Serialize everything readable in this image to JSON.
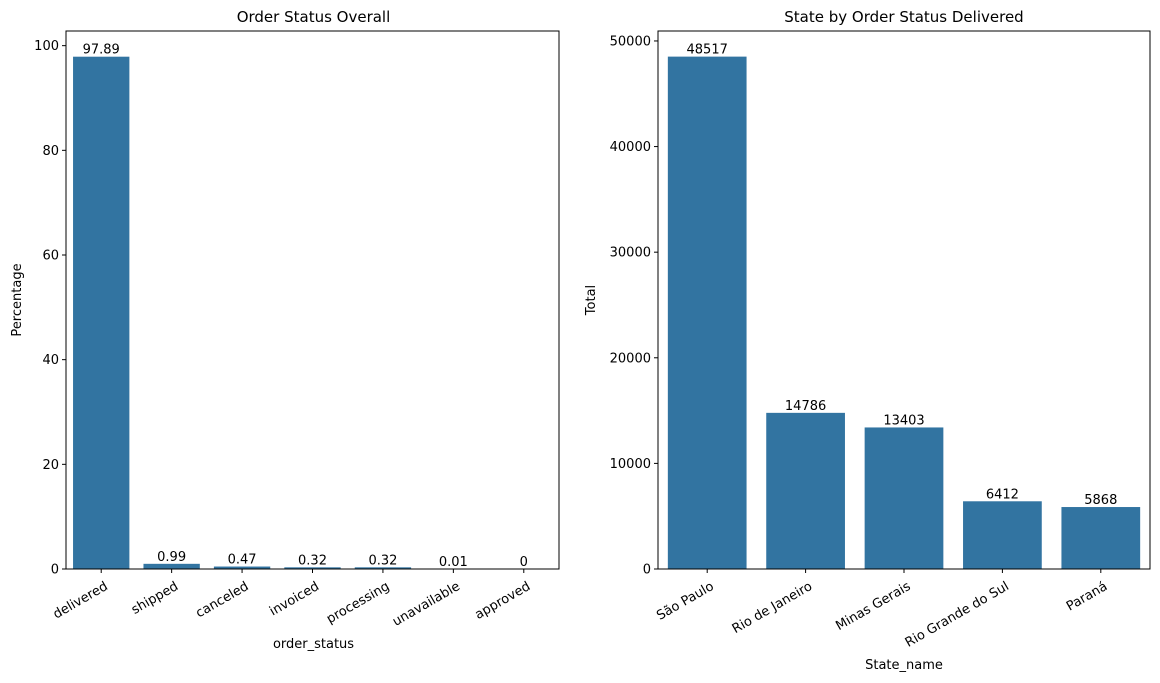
{
  "chart_data": [
    {
      "type": "bar",
      "title": "Order Status Overall",
      "xlabel": "order_status",
      "ylabel": "Percentage",
      "categories": [
        "delivered",
        "shipped",
        "canceled",
        "invoiced",
        "processing",
        "unavailable",
        "approved"
      ],
      "values": [
        97.89,
        0.99,
        0.47,
        0.32,
        0.32,
        0.01,
        0
      ],
      "value_labels": [
        "97.89",
        "0.99",
        "0.47",
        "0.32",
        "0.32",
        "0.01",
        "0"
      ],
      "ylim": [
        0,
        102.8
      ],
      "yticks": [
        0,
        20,
        40,
        60,
        80,
        100
      ],
      "xtick_rotation": 30,
      "color": "#3274a1",
      "grid": false
    },
    {
      "type": "bar",
      "title": "State by Order Status Delivered",
      "xlabel": "State_name",
      "ylabel": "Total",
      "categories": [
        "São Paulo",
        "Rio de Janeiro",
        "Minas Gerais",
        "Rio Grande do Sul",
        "Paraná"
      ],
      "values": [
        48517,
        14786,
        13403,
        6412,
        5868
      ],
      "value_labels": [
        "48517",
        "14786",
        "13403",
        "6412",
        "5868"
      ],
      "ylim": [
        0,
        50943
      ],
      "yticks": [
        0,
        10000,
        20000,
        30000,
        40000,
        50000
      ],
      "xtick_rotation": 30,
      "color": "#3274a1",
      "grid": false
    }
  ]
}
